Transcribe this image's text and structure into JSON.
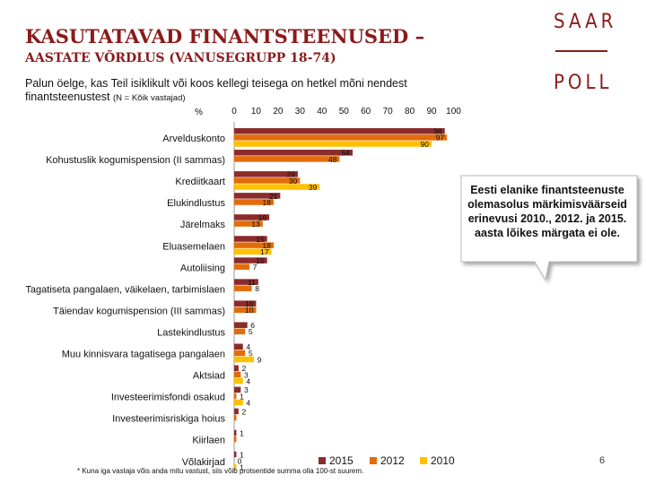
{
  "page": {
    "title_line1": "KASUTATAVAD FINANTSTEENUSED –",
    "title_line2": "AASTATE VÕRDLUS (VANUSEGRUPP 18-74)",
    "question_main": "Palun öelge, kas Teil isiklikult või koos kellegi teisega on hetkel mõni nendest finantsteenustest",
    "question_note": "(N = Kõik vastajad)",
    "percent_symbol": "%",
    "logo_top": "SAAR",
    "logo_bottom": "POLL",
    "callout": "Eesti elanike finantsteenuste olemasolus märkimisväärseid erinevusi 2010., 2012. ja 2015. aasta lõikes märgata ei ole.",
    "footnote": "* Kuna iga vastaja võis anda mitu vastust, siis võib protsentide summa olla 100-st suurem.",
    "page_number": "6"
  },
  "colors": {
    "title": "#8b1a1a",
    "s2015": "#8b2b2b",
    "s2012": "#e36c0a",
    "s2010": "#ffc000",
    "axis": "#9a9a9a"
  },
  "chart_data": {
    "type": "bar",
    "orientation": "horizontal",
    "title": "KASUTATAVAD FINANTSTEENUSED – AASTATE VÕRDLUS (VANUSEGRUPP 18-74)",
    "xlabel": "%",
    "xlim": [
      0,
      100
    ],
    "ticks": [
      0,
      10,
      20,
      30,
      40,
      50,
      60,
      70,
      80,
      90,
      100
    ],
    "legend_position": "bottom",
    "categories": [
      "Arvelduskonto",
      "Kohustuslik kogumispension (II sammas)",
      "Krediitkaart",
      "Elukindlustus",
      "Järelmaks",
      "Eluasemelaen",
      "Autoliising",
      "Tagatiseta pangalaen, väikelaen, tarbimislaen",
      "Täiendav kogumispension (III sammas)",
      "Lastekindlustus",
      "Muu kinnisvara tagatisega pangalaen",
      "Aktsiad",
      "Investeerimisfondi osakud",
      "Investeerimisriskiga hoius",
      "Kiirlaen",
      "Võlakirjad"
    ],
    "series": [
      {
        "name": "2015",
        "values": [
          96,
          54,
          29,
          21,
          16,
          15,
          15,
          11,
          10,
          6,
          4,
          2,
          3,
          2,
          1,
          1
        ],
        "labels": [
          "96",
          "54",
          "29",
          "21",
          "16",
          "15",
          "15",
          "11",
          "10",
          "6",
          "4",
          "2",
          "3",
          "2",
          "1",
          "1"
        ]
      },
      {
        "name": "2012",
        "values": [
          97,
          48,
          30,
          18,
          13,
          18,
          7,
          8,
          10,
          5,
          5,
          3,
          1,
          1,
          1,
          0
        ],
        "labels": [
          "97",
          "48",
          "30",
          "18",
          "13",
          "18",
          "7",
          "8",
          "10",
          "5",
          "5",
          "3",
          "1",
          "",
          "",
          "0"
        ]
      },
      {
        "name": "2010",
        "values": [
          90,
          null,
          39,
          null,
          null,
          17,
          null,
          null,
          null,
          null,
          9,
          4,
          4,
          null,
          null,
          1
        ],
        "labels": [
          "90",
          "",
          "39",
          "",
          "",
          "17",
          "",
          "",
          "",
          "",
          "9",
          "4",
          "4",
          "",
          "",
          "1"
        ]
      }
    ]
  }
}
